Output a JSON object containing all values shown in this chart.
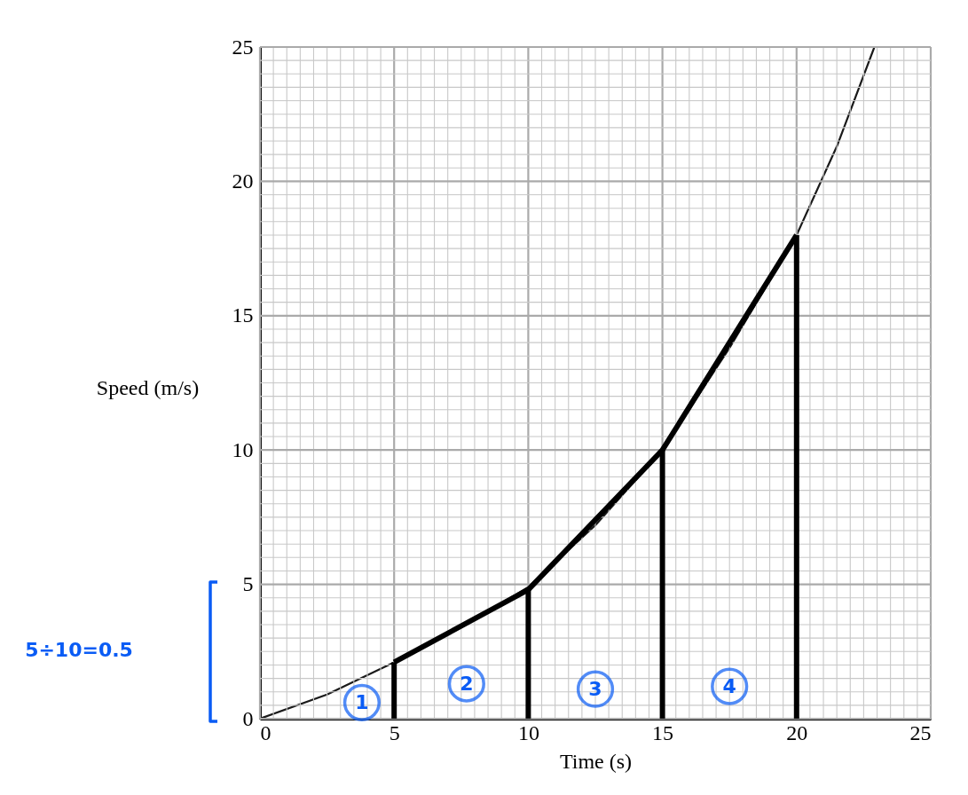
{
  "chart_data": {
    "type": "line",
    "xlabel": "Time (s)",
    "ylabel": "Speed (m/s)",
    "xlim": [
      0,
      25
    ],
    "ylim": [
      0,
      25
    ],
    "xticks": [
      0,
      {
        "value": 0.5,
        "label": null
      },
      {
        "value": 1,
        "label": null
      },
      {
        "value": 1.5,
        "label": null
      },
      {
        "value": 2,
        "label": null
      },
      {
        "value": 2.5,
        "label": null
      },
      {
        "value": 3,
        "label": null
      },
      {
        "value": 3.5,
        "label": null
      },
      {
        "value": 4,
        "label": null
      },
      {
        "value": 4.5,
        "label": null
      },
      5,
      {
        "value": 5.5,
        "label": null
      },
      {
        "value": 6,
        "label": null
      },
      {
        "value": 6.5,
        "label": null
      },
      {
        "value": 7,
        "label": null
      },
      {
        "value": 7.5,
        "label": null
      },
      {
        "value": 8,
        "label": null
      },
      {
        "value": 8.5,
        "label": null
      },
      {
        "value": 9,
        "label": null
      },
      {
        "value": 9.5,
        "label": null
      },
      10,
      {
        "value": 10.5,
        "label": null
      },
      {
        "value": 11,
        "label": null
      },
      {
        "value": 11.5,
        "label": null
      },
      {
        "value": 12,
        "label": null
      },
      {
        "value": 12.5,
        "label": null
      },
      {
        "value": 13,
        "label": null
      },
      {
        "value": 13.5,
        "label": null
      },
      {
        "value": 14,
        "label": null
      },
      {
        "value": 14.5,
        "label": null
      },
      15,
      {
        "value": 15.5,
        "label": null
      },
      {
        "value": 16,
        "label": null
      },
      {
        "value": 16.5,
        "label": null
      },
      {
        "value": 17,
        "label": null
      },
      {
        "value": 17.5,
        "label": null
      },
      {
        "value": 18,
        "label": null
      },
      {
        "value": 18.5,
        "label": null
      },
      {
        "value": 19,
        "label": null
      },
      {
        "value": 19.5,
        "label": null
      },
      20,
      {
        "value": 20.5,
        "label": null
      },
      {
        "value": 21,
        "label": null
      },
      {
        "value": 21.5,
        "label": null
      },
      {
        "value": 22,
        "label": null
      },
      {
        "value": 22.5,
        "label": null
      },
      {
        "value": 23,
        "label": null
      },
      {
        "value": 23.5,
        "label": null
      },
      {
        "value": 24,
        "label": null
      },
      {
        "value": 24.5,
        "label": null
      },
      25
    ],
    "yticks": [
      0,
      {
        "value": 0.5,
        "label": null
      },
      {
        "value": 1,
        "label": null
      },
      {
        "value": 1.5,
        "label": null
      },
      {
        "value": 2,
        "label": null
      },
      {
        "value": 2.5,
        "label": null
      },
      {
        "value": 3,
        "label": null
      },
      {
        "value": 3.5,
        "label": null
      },
      {
        "value": 4,
        "label": null
      },
      {
        "value": 4.5,
        "label": null
      },
      5,
      {
        "value": 5.5,
        "label": null
      },
      {
        "value": 6,
        "label": null
      },
      {
        "value": 6.5,
        "label": null
      },
      {
        "value": 7,
        "label": null
      },
      {
        "value": 7.5,
        "label": null
      },
      {
        "value": 8,
        "label": null
      },
      {
        "value": 8.5,
        "label": null
      },
      {
        "value": 9,
        "label": null
      },
      {
        "value": 9.5,
        "label": null
      },
      10,
      {
        "value": 10.5,
        "label": null
      },
      {
        "value": 11,
        "label": null
      },
      {
        "value": 11.5,
        "label": null
      },
      {
        "value": 12,
        "label": null
      },
      {
        "value": 12.5,
        "label": null
      },
      {
        "value": 13,
        "label": null
      },
      {
        "value": 13.5,
        "label": null
      },
      {
        "value": 14,
        "label": null
      },
      {
        "value": 14.5,
        "label": null
      },
      15,
      {
        "value": 15.5,
        "label": null
      },
      {
        "value": 16,
        "label": null
      },
      {
        "value": 16.5,
        "label": null
      },
      {
        "value": 17,
        "label": null
      },
      {
        "value": 17.5,
        "label": null
      },
      {
        "value": 18,
        "label": null
      },
      {
        "value": 18.5,
        "label": null
      },
      {
        "value": 19,
        "label": null
      },
      {
        "value": 19.5,
        "label": null
      },
      20,
      {
        "value": 20.5,
        "label": null
      },
      {
        "value": 21,
        "label": null
      },
      {
        "value": 21.5,
        "label": null
      },
      {
        "value": 22,
        "label": null
      },
      {
        "value": 22.5,
        "label": null
      },
      {
        "value": 23,
        "label": null
      },
      {
        "value": 23.5,
        "label": null
      },
      {
        "value": 24,
        "label": null
      },
      {
        "value": 24.5,
        "label": null
      },
      25
    ],
    "grid": true,
    "series": [
      {
        "type": "line",
        "color": "#1a1a1a",
        "x": [
          0,
          2.5,
          5,
          7.5,
          10,
          12.5,
          15,
          17.5,
          20,
          21.5,
          22.9
        ],
        "values": [
          0,
          0.9,
          2.1,
          3.4,
          4.9,
          7.2,
          10,
          13.8,
          18,
          21.3,
          25
        ]
      },
      {
        "type": "line",
        "color": "#000000",
        "x": [
          5,
          10,
          15,
          20
        ],
        "values": [
          2.1,
          4.8,
          10,
          18
        ]
      },
      {
        "type": "line",
        "color": "#000000",
        "x": [
          5,
          5
        ],
        "values": [
          0,
          2.1
        ]
      },
      {
        "type": "line",
        "color": "#000000",
        "x": [
          10,
          10
        ],
        "values": [
          0,
          4.8
        ]
      },
      {
        "type": "line",
        "color": "#000000",
        "x": [
          15,
          15
        ],
        "values": [
          0,
          10
        ]
      },
      {
        "type": "line",
        "color": "#000000",
        "x": [
          20,
          20
        ],
        "values": [
          0,
          18
        ]
      }
    ],
    "annotations": [
      "5÷10=0.5",
      {
        "text": "1",
        "x": 3.8,
        "y": 0.6
      },
      {
        "text": "2",
        "x": 7.7,
        "y": 1.3
      },
      {
        "text": "3",
        "x": 12.5,
        "y": 1.1
      },
      {
        "text": "4",
        "x": 17.5,
        "y": 1.2
      }
    ]
  }
}
